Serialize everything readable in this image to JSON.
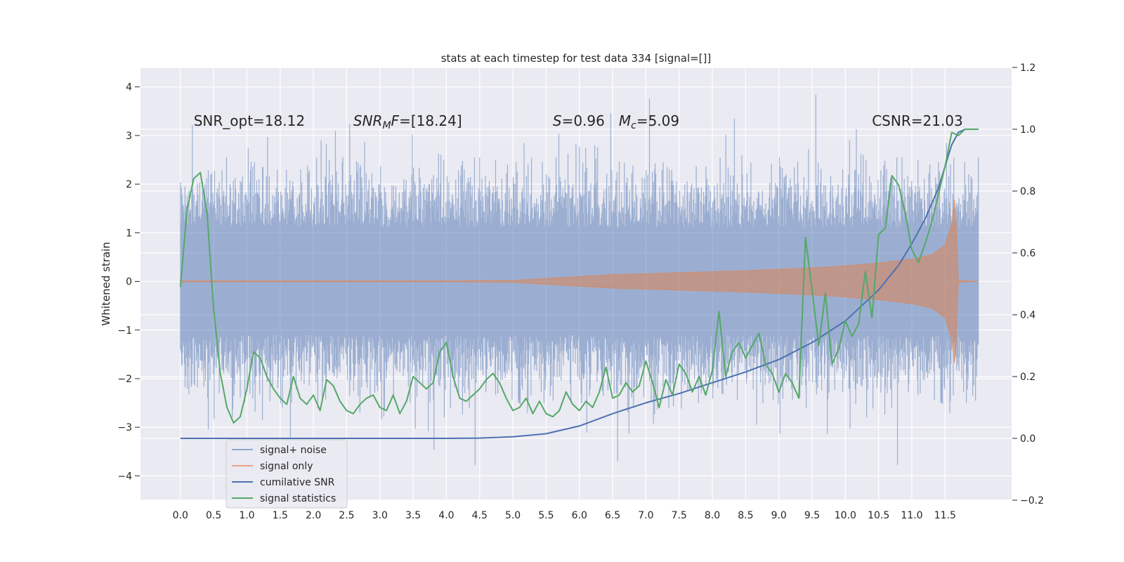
{
  "chart_data": {
    "type": "line",
    "title": "stats at each timestep for test data 334 [signal=[]]",
    "ylabel": "Whitened strain",
    "xlabel": "",
    "grid": true,
    "legend_placement": "lower-left",
    "xlim": [
      -0.6,
      12.5
    ],
    "ylim": [
      -4.5,
      4.4
    ],
    "y2lim": [
      -0.2,
      1.2
    ],
    "x_ticks": [
      0.0,
      0.5,
      1.0,
      1.5,
      2.0,
      2.5,
      3.0,
      3.5,
      4.0,
      4.5,
      5.0,
      5.5,
      6.0,
      6.5,
      7.0,
      7.5,
      8.0,
      8.5,
      9.0,
      9.5,
      10.0,
      10.5,
      11.0,
      11.5
    ],
    "x_tick_labels": [
      "0.0",
      "0.5",
      "1.0",
      "1.5",
      "2.0",
      "2.5",
      "3.0",
      "3.5",
      "4.0",
      "4.5",
      "5.0",
      "5.5",
      "6.0",
      "6.5",
      "7.0",
      "7.5",
      "8.0",
      "8.5",
      "9.0",
      "9.5",
      "10.0",
      "10.5",
      "11.0",
      "11.5"
    ],
    "y_ticks": [
      -4,
      -3,
      -2,
      -1,
      0,
      1,
      2,
      3,
      4
    ],
    "y_tick_labels": [
      "−4",
      "−3",
      "−2",
      "−1",
      "0",
      "1",
      "2",
      "3",
      "4"
    ],
    "y2_ticks": [
      -0.2,
      0.0,
      0.2,
      0.4,
      0.6,
      0.8,
      1.0,
      1.2
    ],
    "y2_tick_labels": [
      "−0.2",
      "0.0",
      "0.2",
      "0.4",
      "0.6",
      "0.8",
      "1.0",
      "1.2"
    ],
    "annotations": [
      {
        "text": "SNR_opt=18.12",
        "x": 0.2,
        "y": 3.2
      },
      {
        "text": "SNR_MF=[18.24]",
        "x": 2.6,
        "y": 3.2
      },
      {
        "text": "S=0.96   M_c=5.09",
        "x": 5.6,
        "y": 3.2
      },
      {
        "text": "CSNR=21.03",
        "x": 10.4,
        "y": 3.2
      }
    ],
    "series": [
      {
        "name": "signal+ noise",
        "color": "#4c72b0",
        "axis": "left",
        "style": "noise band",
        "x_range": [
          0.0,
          12.0
        ],
        "amplitude_typical": 2.0,
        "amplitude_extremes": [
          -3.8,
          4.1
        ]
      },
      {
        "name": "signal only",
        "color": "#dd8452",
        "axis": "left",
        "style": "chirp",
        "x": [
          0,
          1,
          2,
          3,
          4,
          5,
          5.5,
          6,
          6.5,
          7,
          7.5,
          8,
          8.5,
          9,
          9.5,
          10,
          10.5,
          11,
          11.3,
          11.5,
          11.6,
          11.65,
          11.7,
          12.0
        ],
        "envelope": [
          0.01,
          0.01,
          0.01,
          0.01,
          0.01,
          0.02,
          0.06,
          0.1,
          0.14,
          0.16,
          0.18,
          0.2,
          0.22,
          0.25,
          0.28,
          0.32,
          0.38,
          0.46,
          0.55,
          0.75,
          1.2,
          1.8,
          0.02,
          0.0
        ]
      },
      {
        "name": "cumilative SNR",
        "color": "#4c72b0",
        "axis": "right",
        "x": [
          0,
          1,
          2,
          3,
          4,
          4.5,
          5,
          5.5,
          6,
          6.5,
          7,
          7.5,
          8,
          8.5,
          9,
          9.5,
          10,
          10.5,
          10.8,
          11,
          11.2,
          11.4,
          11.5,
          11.6,
          11.7,
          11.8,
          12.0
        ],
        "y": [
          0.0,
          0.0,
          0.0,
          0.0,
          0.0,
          0.001,
          0.005,
          0.015,
          0.04,
          0.08,
          0.115,
          0.145,
          0.18,
          0.215,
          0.255,
          0.31,
          0.38,
          0.48,
          0.56,
          0.63,
          0.71,
          0.81,
          0.88,
          0.95,
          0.99,
          1.0,
          1.0
        ]
      },
      {
        "name": "signal statistics",
        "color": "#55a868",
        "axis": "right",
        "x": [
          0.0,
          0.1,
          0.2,
          0.3,
          0.4,
          0.5,
          0.6,
          0.7,
          0.8,
          0.9,
          1.0,
          1.1,
          1.2,
          1.3,
          1.4,
          1.5,
          1.6,
          1.7,
          1.8,
          1.9,
          2.0,
          2.1,
          2.2,
          2.3,
          2.4,
          2.5,
          2.6,
          2.7,
          2.8,
          2.9,
          3.0,
          3.1,
          3.2,
          3.3,
          3.4,
          3.5,
          3.6,
          3.7,
          3.8,
          3.9,
          4.0,
          4.1,
          4.2,
          4.3,
          4.4,
          4.5,
          4.6,
          4.7,
          4.8,
          4.9,
          5.0,
          5.1,
          5.2,
          5.3,
          5.4,
          5.5,
          5.6,
          5.7,
          5.8,
          5.9,
          6.0,
          6.1,
          6.2,
          6.3,
          6.4,
          6.5,
          6.6,
          6.7,
          6.8,
          6.9,
          7.0,
          7.1,
          7.2,
          7.3,
          7.4,
          7.5,
          7.6,
          7.7,
          7.8,
          7.9,
          8.0,
          8.1,
          8.2,
          8.3,
          8.4,
          8.5,
          8.6,
          8.7,
          8.8,
          8.9,
          9.0,
          9.1,
          9.2,
          9.3,
          9.4,
          9.5,
          9.6,
          9.7,
          9.8,
          9.9,
          10.0,
          10.1,
          10.2,
          10.3,
          10.4,
          10.5,
          10.6,
          10.7,
          10.8,
          10.9,
          11.0,
          11.1,
          11.2,
          11.3,
          11.4,
          11.5,
          11.6,
          11.7,
          11.8,
          11.9,
          12.0
        ],
        "y": [
          0.49,
          0.74,
          0.84,
          0.86,
          0.73,
          0.42,
          0.21,
          0.1,
          0.05,
          0.07,
          0.16,
          0.28,
          0.26,
          0.2,
          0.16,
          0.13,
          0.11,
          0.2,
          0.13,
          0.11,
          0.14,
          0.09,
          0.19,
          0.17,
          0.12,
          0.09,
          0.08,
          0.11,
          0.13,
          0.14,
          0.1,
          0.09,
          0.14,
          0.08,
          0.12,
          0.2,
          0.18,
          0.16,
          0.18,
          0.28,
          0.31,
          0.2,
          0.13,
          0.12,
          0.14,
          0.16,
          0.19,
          0.21,
          0.18,
          0.13,
          0.09,
          0.1,
          0.13,
          0.08,
          0.12,
          0.08,
          0.07,
          0.09,
          0.15,
          0.11,
          0.09,
          0.12,
          0.1,
          0.15,
          0.23,
          0.13,
          0.14,
          0.18,
          0.15,
          0.17,
          0.25,
          0.18,
          0.1,
          0.19,
          0.14,
          0.24,
          0.21,
          0.15,
          0.2,
          0.14,
          0.22,
          0.41,
          0.2,
          0.28,
          0.31,
          0.26,
          0.3,
          0.34,
          0.24,
          0.21,
          0.15,
          0.21,
          0.18,
          0.13,
          0.65,
          0.48,
          0.3,
          0.47,
          0.24,
          0.29,
          0.38,
          0.33,
          0.37,
          0.54,
          0.39,
          0.66,
          0.68,
          0.85,
          0.82,
          0.73,
          0.61,
          0.57,
          0.63,
          0.7,
          0.79,
          0.88,
          0.99,
          0.98,
          1.0,
          1.0,
          1.0
        ]
      }
    ]
  },
  "legend": {
    "items": [
      {
        "label": "signal+ noise",
        "color": "#8fa8d4"
      },
      {
        "label": "signal only",
        "color": "#e6a68a"
      },
      {
        "label": "cumilative SNR",
        "color": "#4c72b0"
      },
      {
        "label": "signal statistics",
        "color": "#55a868"
      }
    ]
  },
  "colors": {
    "plot_background": "#eaeaf2",
    "grid": "#ffffff",
    "noise": "#4c72b0",
    "signal": "#dd8452"
  }
}
